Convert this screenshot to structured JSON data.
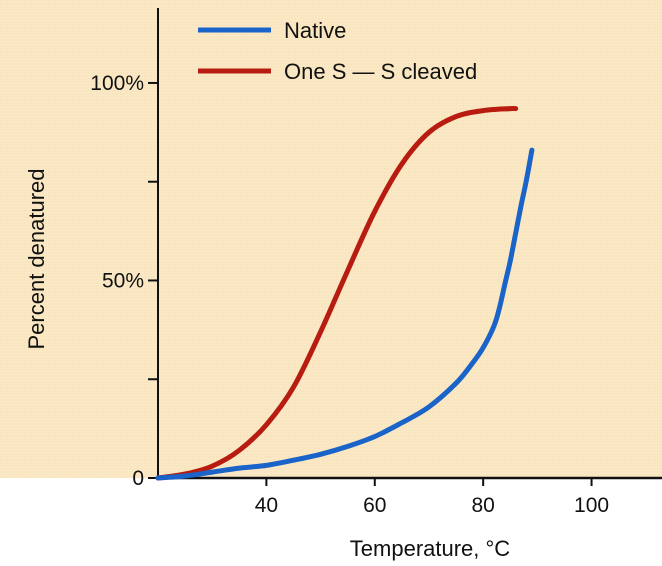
{
  "chart_data": {
    "type": "line",
    "xlabel": "Temperature, °C",
    "ylabel": "Percent denatured",
    "xlim": [
      20,
      113
    ],
    "ylim": [
      0,
      121
    ],
    "grid": false,
    "legend_position": "top-left",
    "background_color": "#fbe9c5",
    "x_ticks": [
      {
        "value": 40,
        "label": "40"
      },
      {
        "value": 60,
        "label": "60"
      },
      {
        "value": 80,
        "label": "80"
      },
      {
        "value": 100,
        "label": "100"
      }
    ],
    "y_ticks": [
      {
        "value": 0,
        "label": "0"
      },
      {
        "value": 25,
        "label": ""
      },
      {
        "value": 50,
        "label": "50%"
      },
      {
        "value": 75,
        "label": ""
      },
      {
        "value": 100,
        "label": "100%"
      }
    ],
    "series": [
      {
        "name": "Native",
        "color": "#1a63c8",
        "x": [
          20,
          25,
          30,
          35,
          40,
          45,
          50,
          55,
          60,
          65,
          70,
          75,
          78,
          80,
          82,
          83,
          84,
          85,
          86,
          87,
          88,
          89
        ],
        "y": [
          0,
          0.5,
          1.5,
          2.5,
          3.2,
          4.5,
          6,
          8,
          10.5,
          14,
          18,
          24,
          29,
          33,
          38.5,
          43,
          49,
          55,
          62,
          69,
          75.5,
          83
        ]
      },
      {
        "name": "One S — S cleaved",
        "color": "#b81c10",
        "x": [
          20,
          25,
          30,
          35,
          40,
          45,
          50,
          55,
          60,
          65,
          70,
          75,
          80,
          85,
          86
        ],
        "y": [
          0,
          1,
          3,
          7,
          13.5,
          23,
          37,
          52.5,
          67.5,
          79.5,
          87.5,
          91.5,
          93,
          93.5,
          93.5
        ]
      }
    ]
  }
}
